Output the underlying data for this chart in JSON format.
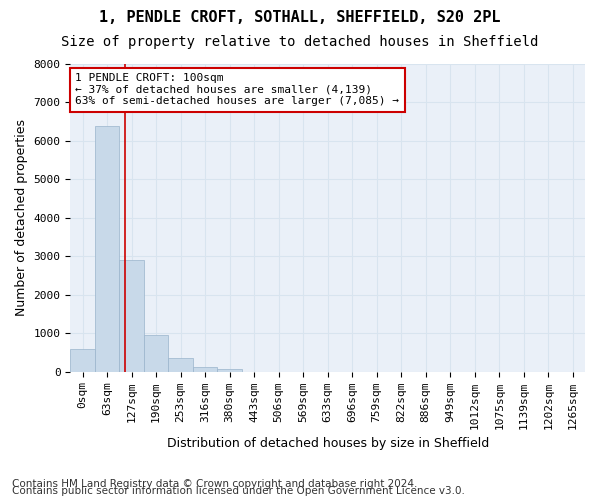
{
  "title": "1, PENDLE CROFT, SOTHALL, SHEFFIELD, S20 2PL",
  "subtitle": "Size of property relative to detached houses in Sheffield",
  "xlabel": "Distribution of detached houses by size in Sheffield",
  "ylabel": "Number of detached properties",
  "bar_values": [
    600,
    6400,
    2900,
    950,
    350,
    130,
    70,
    0,
    0,
    0,
    0,
    0,
    0,
    0,
    0,
    0,
    0,
    0,
    0,
    0,
    0
  ],
  "bar_labels": [
    "0sqm",
    "63sqm",
    "127sqm",
    "190sqm",
    "253sqm",
    "316sqm",
    "380sqm",
    "443sqm",
    "506sqm",
    "569sqm",
    "633sqm",
    "696sqm",
    "759sqm",
    "822sqm",
    "886sqm",
    "949sqm",
    "1012sqm",
    "1075sqm",
    "1139sqm",
    "1202sqm",
    "1265sqm"
  ],
  "bar_color": "#c8d9e9",
  "bar_edgecolor": "#9ab4cc",
  "grid_color": "#d8e4ef",
  "background_color": "#eaf0f8",
  "vline_x": 1.72,
  "vline_color": "#cc0000",
  "annotation_line1": "1 PENDLE CROFT: 100sqm",
  "annotation_line2": "← 37% of detached houses are smaller (4,139)",
  "annotation_line3": "63% of semi-detached houses are larger (7,085) →",
  "annotation_box_color": "#cc0000",
  "ylim": [
    0,
    8000
  ],
  "yticks": [
    0,
    1000,
    2000,
    3000,
    4000,
    5000,
    6000,
    7000,
    8000
  ],
  "footnote1": "Contains HM Land Registry data © Crown copyright and database right 2024.",
  "footnote2": "Contains public sector information licensed under the Open Government Licence v3.0.",
  "title_fontsize": 11,
  "subtitle_fontsize": 10,
  "axis_label_fontsize": 9,
  "tick_fontsize": 8,
  "annotation_fontsize": 8,
  "footnote_fontsize": 7.5
}
